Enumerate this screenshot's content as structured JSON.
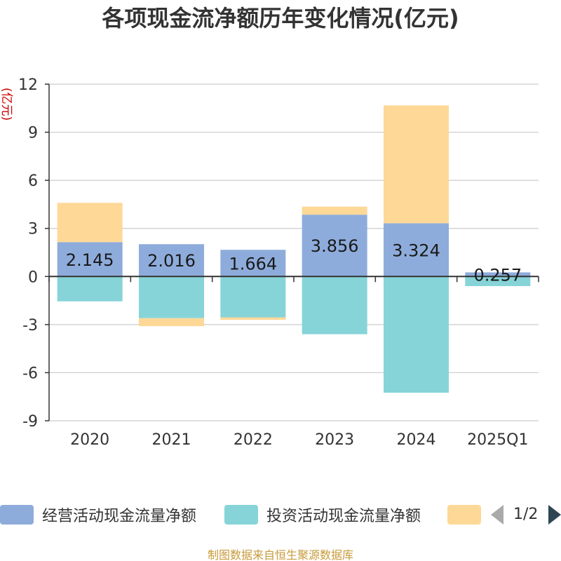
{
  "colors": {
    "operating": "#8eacdb",
    "investing": "#86d4d8",
    "financing": "#fed897",
    "axis": "#333333",
    "grid": "#cccccc",
    "unit": "#cc0000",
    "source": "#c79a3a"
  },
  "legend": {
    "page": "1/2",
    "prev_icon": "triangle-left-icon",
    "next_icon": "triangle-right-icon"
  },
  "source": "制图数据来自恒生聚源数据库",
  "chart_data": {
    "type": "bar",
    "stacked": true,
    "title": "各项现金流净额历年变化情况(亿元)",
    "ylabel": "(亿元)",
    "xlabel": "",
    "ylim": [
      -9,
      12
    ],
    "yticks": [
      -9,
      -6,
      -3,
      0,
      3,
      6,
      9,
      12
    ],
    "ytick_labels": [
      "-9",
      "-6",
      "-3",
      "0",
      "3",
      "6",
      "9",
      "12"
    ],
    "grid": true,
    "legend_position": "bottom",
    "categories": [
      "2020",
      "2021",
      "2022",
      "2023",
      "2024",
      "2025Q1"
    ],
    "series": [
      {
        "name": "经营活动现金流量净额",
        "color": "#8eacdb",
        "values": [
          2.145,
          2.016,
          1.664,
          3.856,
          3.324,
          0.257
        ],
        "labels": [
          "2.145",
          "2.016",
          "1.664",
          "3.856",
          "3.324",
          "0.257"
        ]
      },
      {
        "name": "投资活动现金流量净额",
        "color": "#86d4d8",
        "values": [
          -1.55,
          -2.6,
          -2.55,
          -3.6,
          -7.25,
          -0.6
        ]
      },
      {
        "name": "",
        "color": "#fed897",
        "values": [
          2.45,
          -0.5,
          -0.15,
          0.5,
          7.35,
          0.0
        ]
      }
    ]
  }
}
